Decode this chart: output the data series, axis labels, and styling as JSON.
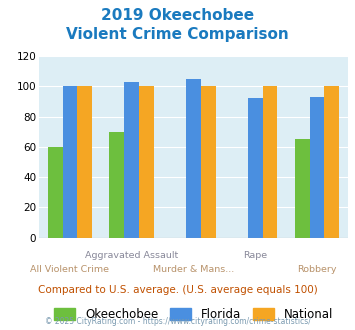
{
  "title_line1": "2019 Okeechobee",
  "title_line2": "Violent Crime Comparison",
  "title_color": "#1a7abf",
  "okeechobee": [
    60,
    70,
    null,
    null,
    65
  ],
  "florida": [
    100,
    103,
    105,
    92,
    93
  ],
  "national": [
    100,
    100,
    100,
    100,
    100
  ],
  "bar_colors": {
    "okeechobee": "#6dbf3e",
    "florida": "#4a8fe0",
    "national": "#f5a623"
  },
  "ylim": [
    0,
    120
  ],
  "yticks": [
    0,
    20,
    40,
    60,
    80,
    100,
    120
  ],
  "background_color": "#ddeef5",
  "note": "Compared to U.S. average. (U.S. average equals 100)",
  "note_color": "#c05000",
  "footer": "© 2025 CityRating.com - https://www.cityrating.com/crime-statistics/",
  "footer_color": "#7a9ab0",
  "legend_labels": [
    "Okeechobee",
    "Florida",
    "National"
  ],
  "top_labels": [
    "",
    "Aggravated Assault",
    "",
    "Rape",
    ""
  ],
  "bottom_labels": [
    "All Violent Crime",
    "",
    "Murder & Mans...",
    "",
    "Robbery"
  ],
  "top_label_color": "#888899",
  "bottom_label_color": "#b8926a"
}
